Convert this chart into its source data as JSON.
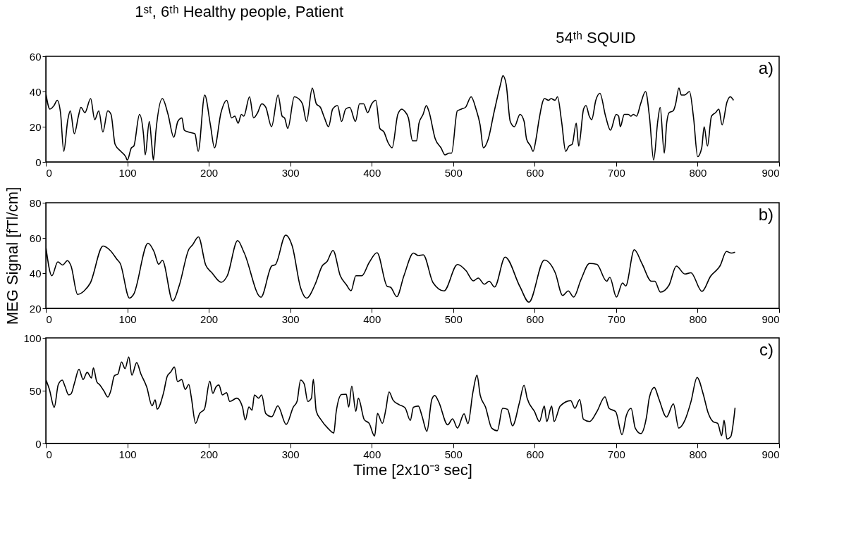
{
  "chart_data": [
    {
      "type": "line",
      "title": "1ˢᵗ, 6ᵗʰ Healthy people, Patient",
      "annotations": [
        "54ᵗʰ SQUID",
        "a)"
      ],
      "xlim": [
        0,
        900
      ],
      "xticks": [
        0,
        100,
        200,
        300,
        400,
        500,
        600,
        700,
        800,
        900
      ],
      "ylim": [
        0,
        60
      ],
      "yticks": [
        0,
        20,
        40,
        60
      ],
      "grid": false,
      "series": [
        {
          "color": "#000000",
          "x": [
            0,
            5,
            10,
            14,
            18,
            22,
            27,
            30,
            35,
            40,
            43,
            48,
            55,
            60,
            65,
            70,
            76,
            80,
            85,
            92,
            98,
            100,
            105,
            108,
            115,
            120,
            122,
            127,
            130,
            132,
            135,
            143,
            150,
            157,
            162,
            167,
            170,
            175,
            183,
            187,
            195,
            202,
            207,
            215,
            222,
            228,
            232,
            236,
            240,
            243,
            250,
            255,
            260,
            265,
            270,
            277,
            285,
            290,
            293,
            297,
            305,
            310,
            315,
            320,
            327,
            332,
            337,
            342,
            347,
            352,
            358,
            363,
            368,
            373,
            380,
            385,
            390,
            395,
            400,
            405,
            410,
            415,
            420,
            425,
            432,
            437,
            440,
            445,
            450,
            455,
            458,
            463,
            467,
            470,
            478,
            485,
            490,
            495,
            498,
            505,
            510,
            515,
            522,
            528,
            533,
            537,
            543,
            550,
            558,
            561,
            565,
            570,
            575,
            582,
            587,
            590,
            595,
            598,
            602,
            605,
            612,
            617,
            620,
            625,
            628,
            633,
            638,
            642,
            646,
            651,
            654,
            660,
            663,
            667,
            670,
            675,
            680,
            687,
            693,
            700,
            703,
            705,
            710,
            715,
            718,
            721,
            725,
            730,
            736,
            741,
            746,
            751,
            754,
            759,
            762,
            765,
            770,
            773,
            777,
            780,
            784,
            790,
            795,
            800,
            805,
            808,
            812,
            817,
            822,
            826,
            830,
            836,
            840,
            844
          ],
          "values": [
            39,
            30,
            32,
            35,
            28,
            6,
            24,
            29,
            16,
            26,
            31,
            28,
            36,
            24,
            29,
            17,
            29,
            27,
            10,
            6,
            3,
            1,
            8,
            9,
            27,
            15,
            4,
            23,
            10,
            1,
            17,
            36,
            27,
            14,
            23,
            25,
            18,
            17,
            16,
            6,
            38,
            21,
            8,
            28,
            35,
            25,
            26,
            22,
            27,
            26,
            37,
            25,
            28,
            33,
            31,
            20,
            38,
            26,
            25,
            19,
            37,
            36,
            33,
            23,
            42,
            33,
            31,
            25,
            20,
            30,
            32,
            23,
            30,
            31,
            23,
            33,
            33,
            28,
            33,
            35,
            19,
            17,
            11,
            8,
            27,
            30,
            29,
            25,
            12,
            12,
            22,
            27,
            32,
            29,
            13,
            8,
            4,
            5,
            5,
            29,
            30,
            31,
            37,
            30,
            21,
            8,
            13,
            28,
            44,
            49,
            44,
            23,
            20,
            27,
            23,
            13,
            9,
            6,
            14,
            23,
            36,
            35,
            36,
            35,
            37,
            23,
            6,
            9,
            10,
            22,
            9,
            30,
            32,
            26,
            24,
            35,
            39,
            26,
            18,
            27,
            26,
            20,
            27,
            27,
            26,
            27,
            26,
            33,
            40,
            25,
            1,
            23,
            31,
            5,
            22,
            28,
            29,
            33,
            42,
            38,
            38,
            40,
            25,
            3,
            8,
            20,
            9,
            26,
            28,
            30,
            21,
            34,
            37,
            35
          ]
        }
      ]
    },
    {
      "type": "line",
      "ylabel": "MEG Signal [fTl/cm]",
      "annotations": [
        "b)"
      ],
      "xlim": [
        0,
        900
      ],
      "xticks": [
        0,
        100,
        200,
        300,
        400,
        500,
        600,
        700,
        800,
        900
      ],
      "ylim": [
        20,
        80
      ],
      "yticks": [
        20,
        40,
        60,
        80
      ],
      "grid": false,
      "series": [
        {
          "color": "#000000",
          "x": [
            0,
            7.4,
            14.7,
            20.6,
            26.5,
            31,
            39,
            47.2,
            54.6,
            70.2,
            79.6,
            87,
            91.4,
            102.6,
            107.7,
            125.4,
            132.7,
            138.6,
            143,
            155.8,
            163.7,
            175.5,
            180,
            187.3,
            196.2,
            203.5,
            215.3,
            222.7,
            235.4,
            243.4,
            264,
            277.3,
            281.7,
            294.4,
            302.4,
            312.7,
            320.1,
            330.4,
            339.2,
            345.1,
            352.5,
            361.4,
            368.7,
            374.6,
            380.5,
            387.9,
            396.8,
            406.5,
            418.9,
            423.3,
            430.7,
            439.5,
            451.2,
            457.2,
            463.2,
            475.2,
            488.7,
            505.2,
            515.7,
            524.7,
            530.7,
            538.2,
            544.2,
            550.8,
            563.7,
            581.8,
            592.9,
            611.8,
            625.3,
            634.3,
            641.2,
            647.8,
            656.8,
            667.3,
            676.3,
            688.3,
            692.2,
            700.3,
            707.8,
            711.7,
            722.2,
            731.8,
            743.2,
            747.4,
            754.3,
            764.8,
            773.8,
            784.3,
            791.8,
            805.3,
            815.8,
            827.8,
            835.3,
            841.4,
            845.9
          ],
          "values": [
            55.1,
            38.5,
            46.4,
            44.6,
            47.1,
            44,
            27.9,
            30,
            34.4,
            55.4,
            52.6,
            48,
            45.4,
            25.8,
            27.9,
            57,
            52.3,
            45,
            47.3,
            24.1,
            32.9,
            53.5,
            56,
            60.6,
            44.6,
            40.4,
            34.8,
            38.5,
            58.5,
            51.6,
            26.3,
            44.1,
            44.8,
            61.6,
            55.4,
            31.6,
            25.8,
            33.5,
            44.1,
            46.6,
            52.9,
            38.5,
            33.5,
            30,
            38.5,
            38.5,
            46,
            51.6,
            32.5,
            31.9,
            26.6,
            38.5,
            51.4,
            50,
            50.4,
            34.6,
            29.9,
            44.9,
            41.4,
            35.6,
            37.2,
            33.7,
            35.4,
            32.1,
            49.1,
            32.4,
            23.5,
            47.4,
            40.1,
            27.3,
            29.9,
            26.4,
            36.3,
            45.5,
            45,
            35.4,
            37.6,
            26.4,
            34.4,
            32.7,
            53.3,
            45.3,
            35.4,
            35.4,
            29.2,
            33.1,
            44,
            39.5,
            40.2,
            29.6,
            38.2,
            44.4,
            52.3,
            51.4,
            51.9
          ]
        }
      ]
    },
    {
      "type": "line",
      "xlabel": "Time [2x10⁻³ sec]",
      "annotations": [
        "c)"
      ],
      "xlim": [
        0,
        900
      ],
      "xticks": [
        0,
        100,
        200,
        300,
        400,
        500,
        600,
        700,
        800,
        900
      ],
      "ylim": [
        0,
        100
      ],
      "yticks": [
        0,
        50,
        100
      ],
      "grid": false,
      "series": [
        {
          "color": "#000000",
          "x": [
            0,
            4.4,
            10.3,
            15.3,
            20.1,
            23.6,
            28,
            31,
            35.4,
            40.7,
            45.7,
            50.7,
            56,
            58.4,
            62.5,
            66.4,
            71.4,
            76.1,
            79.6,
            84.1,
            88.5,
            92.9,
            97.3,
            101.8,
            105.6,
            111.5,
            116.5,
            123.9,
            130.4,
            134.2,
            136.6,
            144.5,
            149,
            153.4,
            157.8,
            161.7,
            166.7,
            171.1,
            175.5,
            178.5,
            183.8,
            188.8,
            194.7,
            201.2,
            205,
            208.9,
            212.4,
            216.8,
            221.8,
            225.7,
            234.5,
            241.3,
            244.8,
            249.3,
            253.1,
            256,
            261.1,
            264.9,
            269.9,
            277.3,
            284.7,
            295,
            303.8,
            308.3,
            312.7,
            317.1,
            321.5,
            326,
            328.3,
            331.9,
            337.8,
            346.6,
            353.4,
            356.3,
            362.8,
            368.7,
            371.7,
            375.5,
            380.5,
            383.5,
            390.9,
            396.8,
            403.5,
            407.1,
            413,
            417.4,
            421.2,
            426.3,
            433.6,
            441,
            447.3,
            451.2,
            457.2,
            461.7,
            467.7,
            473.7,
            477.3,
            482.1,
            493.2,
            499.2,
            505.2,
            513.3,
            518.1,
            524.1,
            529.2,
            533.1,
            539.7,
            547.2,
            554.1,
            560.7,
            566.7,
            572.8,
            581.2,
            586.9,
            590.8,
            599.8,
            605.8,
            611.8,
            614.8,
            620.8,
            623.8,
            631.3,
            644.2,
            649.3,
            655.3,
            659.8,
            667.3,
            676.3,
            686.2,
            691.3,
            699.4,
            707.2,
            712.3,
            718.3,
            723.4,
            730.3,
            737.2,
            740.8,
            746.8,
            752.2,
            761.8,
            770.2,
            776.8,
            784.3,
            791.8,
            799.3,
            806.8,
            812.8,
            818.8,
            824.8,
            829.4,
            832.4,
            836,
            840.5,
            845.9
          ],
          "values": [
            60.6,
            51.2,
            34.2,
            55.8,
            60,
            54,
            46,
            47,
            57.9,
            70.3,
            60.6,
            67.4,
            62,
            71.6,
            58.5,
            55.4,
            49.6,
            44,
            49.6,
            64.1,
            65.8,
            77.2,
            70.9,
            81.9,
            64.7,
            76.6,
            66.2,
            53.3,
            35.7,
            41.3,
            32.6,
            48.1,
            63.7,
            67.8,
            72.4,
            58.5,
            60.6,
            51.2,
            55.8,
            44,
            19.1,
            28.4,
            32.6,
            58.9,
            47.5,
            53.7,
            55.4,
            46,
            48.1,
            39.8,
            42.9,
            34.6,
            22.2,
            34.6,
            31.5,
            46,
            42.9,
            46,
            28.4,
            25.3,
            35.7,
            18,
            34.6,
            39.8,
            60,
            56.4,
            39.8,
            42.9,
            60.8,
            30.7,
            22.4,
            14.1,
            9.9,
            29.5,
            46.3,
            46.7,
            34.6,
            54.3,
            30.5,
            42.9,
            22.4,
            19.1,
            7.1,
            28.4,
            19.1,
            32.6,
            48.8,
            40.9,
            36.8,
            33.7,
            21.9,
            34.4,
            35.4,
            26,
            11.5,
            41.7,
            45.4,
            39.6,
            17.7,
            23.3,
            14.6,
            28.1,
            18.8,
            48.3,
            64.6,
            45.8,
            34.4,
            14.6,
            12.1,
            33.3,
            32.3,
            16.7,
            38.5,
            55.2,
            42.7,
            30.2,
            20.8,
            35.4,
            20.8,
            35.4,
            20.8,
            35.4,
            40.6,
            33.3,
            41.7,
            22.9,
            20.8,
            30.2,
            44.2,
            33.3,
            30.2,
            8.3,
            26,
            33.3,
            14.6,
            9.4,
            25,
            43.8,
            53.1,
            42.7,
            25,
            37.5,
            14.6,
            21.9,
            39.6,
            62.5,
            46.9,
            29.2,
            20.8,
            18.8,
            7.3,
            21.9,
            4.2,
            6.3,
            33.8
          ]
        }
      ]
    }
  ]
}
